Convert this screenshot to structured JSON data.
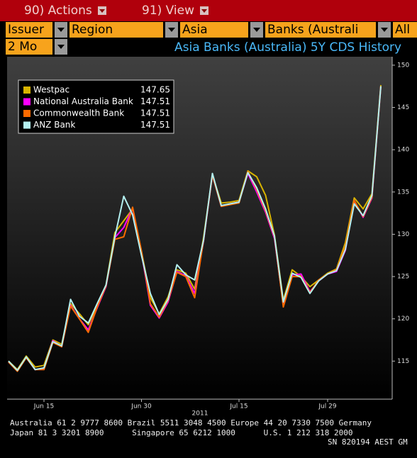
{
  "toolbar": {
    "actions": "90) Actions",
    "view": "91) View"
  },
  "filters": {
    "issuer": "Issuer",
    "region_label": "Region",
    "region": "Asia",
    "group": "Banks (Australi",
    "scope": "All",
    "period": "2 Mo"
  },
  "chart_data": {
    "type": "line",
    "title": "Asia Banks (Australia) 5Y CDS History",
    "categories": [
      null,
      null,
      null,
      null,
      "Jun 15",
      null,
      null,
      null,
      null,
      null,
      null,
      null,
      null,
      null,
      null,
      "Jun 30",
      null,
      null,
      null,
      null,
      null,
      null,
      null,
      null,
      null,
      null,
      "Jul 15",
      null,
      null,
      null,
      null,
      null,
      null,
      null,
      null,
      null,
      "Jul 29",
      null,
      null,
      null,
      null,
      null,
      null
    ],
    "xlabel": "2011",
    "series": [
      {
        "name": "Westpac",
        "color": "#d8b400",
        "values": [
          115,
          114,
          115.6,
          114.3,
          114.5,
          117.5,
          117,
          121.8,
          120.6,
          119.3,
          121.5,
          124,
          130.2,
          131.6,
          133,
          128,
          122.5,
          120.6,
          122.6,
          125.8,
          125.4,
          123.5,
          129.6,
          137,
          133.7,
          133.8,
          134,
          137.5,
          136.8,
          134.6,
          129.9,
          122.2,
          125.8,
          125,
          123.8,
          124.6,
          125.4,
          125.9,
          129,
          134.3,
          133,
          134.8,
          147.65
        ]
      },
      {
        "name": "National Australia Bank",
        "color": "#ff00ff",
        "values": [
          114.9,
          113.9,
          115.4,
          114,
          114.1,
          117.4,
          116.7,
          121.6,
          120,
          118.7,
          121.3,
          123.8,
          129.6,
          130.8,
          133.1,
          127.8,
          121.6,
          120.1,
          122,
          125.6,
          125.1,
          123,
          129.2,
          137,
          133.3,
          133.6,
          133.8,
          137.2,
          135,
          132.6,
          129.5,
          121.6,
          125.2,
          125.3,
          123.2,
          124.5,
          125.3,
          125.6,
          128.1,
          134,
          132,
          134.3,
          147.51
        ]
      },
      {
        "name": "Commonwealth Bank",
        "color": "#ff6a00",
        "values": [
          114.9,
          113.8,
          115.4,
          114,
          114,
          117.2,
          116.7,
          121.5,
          120,
          118.4,
          121.4,
          123.9,
          129.4,
          129.7,
          133.2,
          128,
          121.8,
          120.2,
          122.2,
          125.5,
          125,
          122.5,
          129.3,
          137,
          133.3,
          133.5,
          133.7,
          137.4,
          135.3,
          132.8,
          129.7,
          121.4,
          125,
          125,
          123.1,
          124.6,
          125.3,
          125.8,
          128.5,
          134,
          132.1,
          134.4,
          147.51
        ]
      },
      {
        "name": "ANZ Bank",
        "color": "#b4f0f0",
        "values": [
          115,
          113.9,
          115.5,
          114,
          114.2,
          117.3,
          116.8,
          122.3,
          120.3,
          119.5,
          121.8,
          124,
          129.7,
          134.5,
          132.3,
          127.5,
          123,
          120.5,
          122.3,
          126.4,
          125.2,
          124.6,
          129.3,
          137.2,
          133.4,
          133.6,
          133.8,
          137.3,
          135.5,
          133,
          129.8,
          122,
          125.4,
          124.9,
          123,
          124.5,
          125.3,
          125.7,
          128.2,
          133.6,
          132.2,
          134.6,
          147.51
        ]
      }
    ],
    "ylim": [
      110.5,
      151
    ],
    "yticks": [
      115,
      120,
      125,
      130,
      135,
      140,
      145,
      150
    ],
    "legend": "upper left"
  },
  "footer": {
    "line1": "Australia 61 2 9777 8600 Brazil 5511 3048 4500 Europe 44 20 7330 7500 Germany",
    "line2": "Japan 81 3 3201 8900      Singapore 65 6212 1000      U.S. 1 212 318 2000",
    "line3": "SN 820194 AEST GM"
  }
}
